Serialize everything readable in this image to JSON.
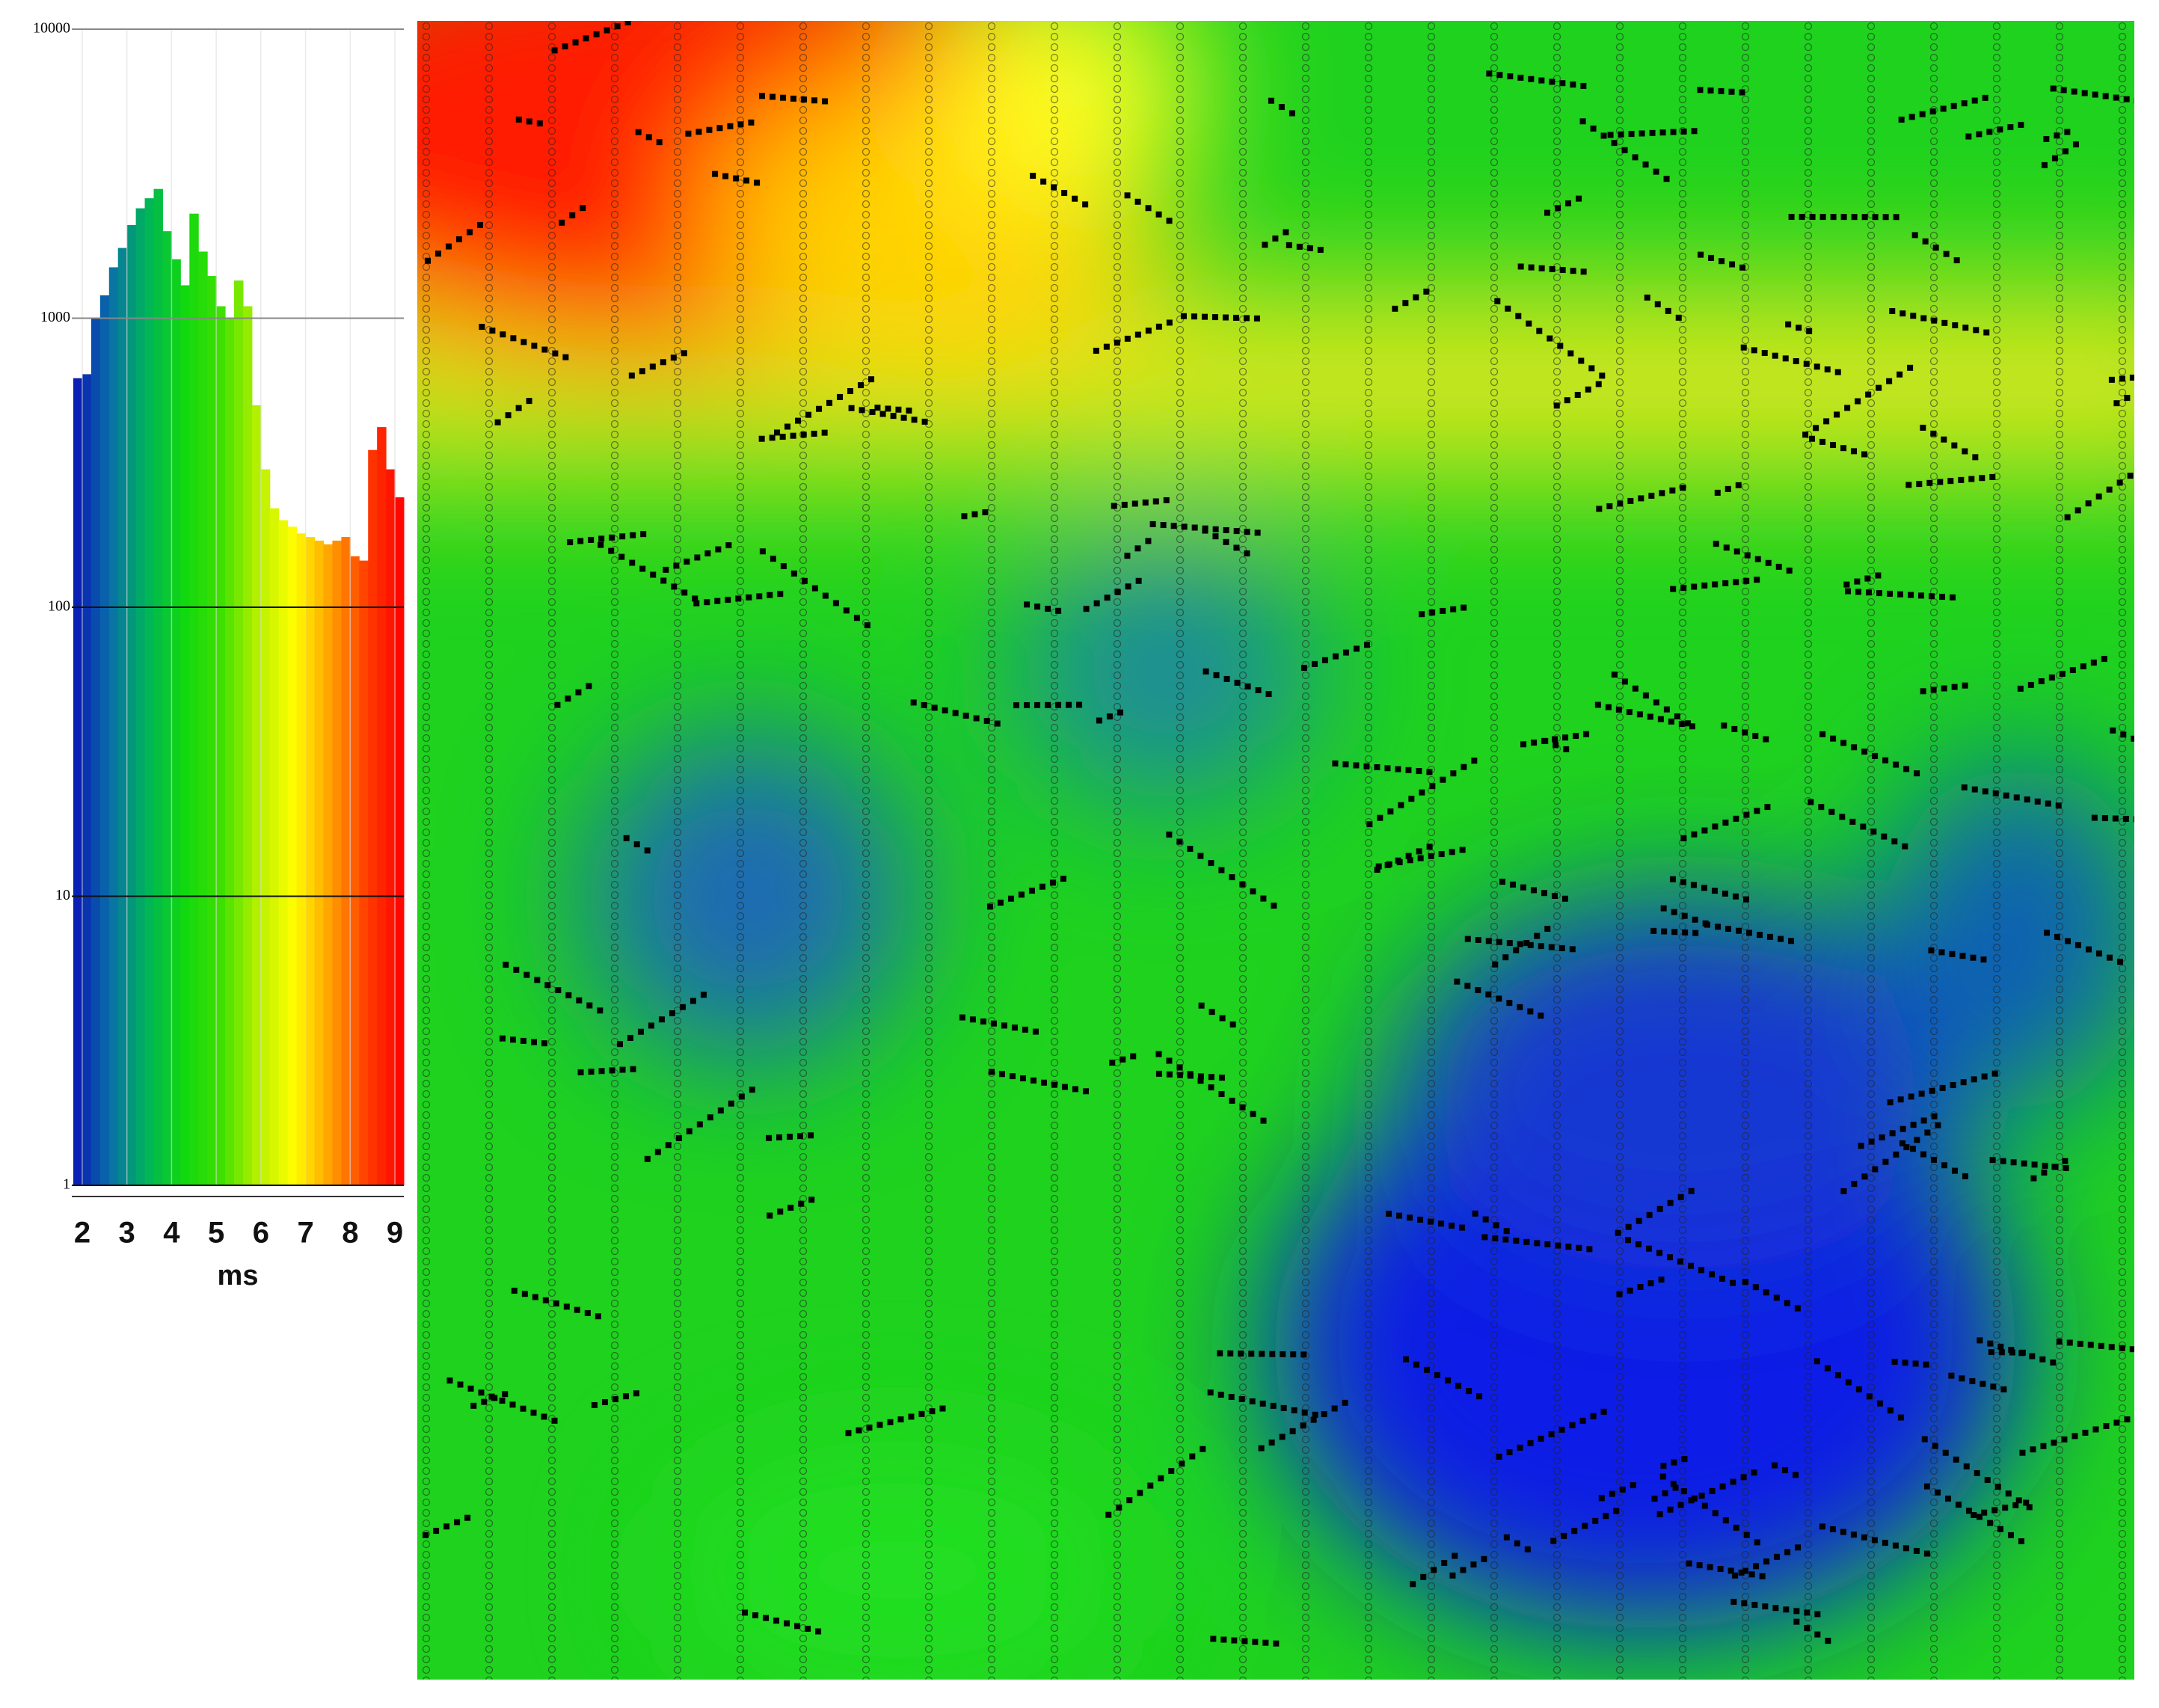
{
  "chart_data": {
    "type": "histogram",
    "x_label": "ms",
    "bins": [
      1.8,
      2.0,
      2.2,
      2.4,
      2.6,
      2.8,
      3.0,
      3.2,
      3.4,
      3.6,
      3.8,
      4.0,
      4.2,
      4.4,
      4.6,
      4.8,
      5.0,
      5.2,
      5.4,
      5.6,
      5.8,
      6.0,
      6.2,
      6.4,
      6.6,
      6.8,
      7.0,
      7.2,
      7.4,
      7.6,
      7.8,
      8.0,
      8.2,
      8.4,
      8.6,
      8.8,
      9.0,
      9.2
    ],
    "values": [
      620,
      640,
      1000,
      1200,
      1500,
      1750,
      2100,
      2400,
      2600,
      2800,
      2000,
      1600,
      1300,
      2300,
      1700,
      1400,
      1100,
      1000,
      1350,
      1100,
      500,
      300,
      220,
      200,
      190,
      180,
      175,
      170,
      165,
      170,
      175,
      150,
      145,
      350,
      420,
      300,
      240
    ],
    "colormap": [
      "#0a14b4",
      "#0a6eaa",
      "#00b45a",
      "#10d810",
      "#3ce000",
      "#b4f000",
      "#ffff00",
      "#ffa000",
      "#ff3c00",
      "#ff0000"
    ],
    "xlim": [
      1.8,
      9.2
    ],
    "xticks": [
      2,
      3,
      4,
      5,
      6,
      7,
      8,
      9
    ],
    "ylim": [
      1,
      10000
    ],
    "yticks": [
      1,
      10,
      100,
      1000,
      10000
    ],
    "log_y": true,
    "grid": true
  }
}
